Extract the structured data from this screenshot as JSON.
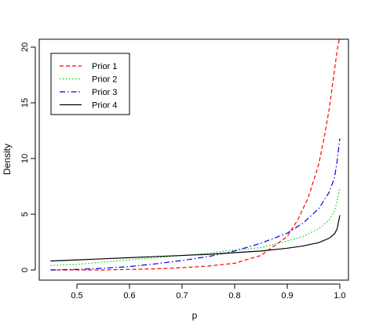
{
  "chart_data": {
    "type": "line",
    "title": "",
    "xlabel": "p",
    "ylabel": "Density",
    "xlim": [
      0.45,
      1.0
    ],
    "ylim": [
      0,
      21
    ],
    "x_ticks": [
      0.5,
      0.6,
      0.7,
      0.8,
      0.9,
      1.0
    ],
    "x_tick_labels": [
      "0.5",
      "0.6",
      "0.7",
      "0.8",
      "0.9",
      "1.0"
    ],
    "y_ticks": [
      0,
      5,
      10,
      15,
      20
    ],
    "y_tick_labels": [
      "0",
      "5",
      "10",
      "15",
      "20"
    ],
    "grid": false,
    "legend_position": "top-left",
    "series": [
      {
        "name": "Prior 1",
        "color": "#ff0000",
        "dash": "dashed",
        "x": [
          0.45,
          0.5,
          0.55,
          0.6,
          0.65,
          0.7,
          0.75,
          0.8,
          0.85,
          0.9,
          0.92,
          0.94,
          0.96,
          0.97,
          0.98,
          0.99,
          0.995,
          1.0
        ],
        "y": [
          0.0,
          0.0,
          0.0,
          0.05,
          0.1,
          0.2,
          0.35,
          0.6,
          1.3,
          3.0,
          4.5,
          6.5,
          9.5,
          11.8,
          14.5,
          18.0,
          19.7,
          21.0
        ]
      },
      {
        "name": "Prior 2",
        "color": "#00cc00",
        "dash": "dotted",
        "x": [
          0.45,
          0.5,
          0.55,
          0.6,
          0.65,
          0.7,
          0.75,
          0.8,
          0.85,
          0.9,
          0.93,
          0.96,
          0.98,
          0.99,
          0.995,
          1.0
        ],
        "y": [
          0.4,
          0.5,
          0.7,
          0.9,
          1.1,
          1.3,
          1.5,
          1.8,
          2.0,
          2.6,
          3.0,
          3.7,
          4.5,
          5.3,
          6.2,
          7.4
        ]
      },
      {
        "name": "Prior 3",
        "color": "#0000ee",
        "dash": "dashdot",
        "x": [
          0.45,
          0.5,
          0.55,
          0.6,
          0.65,
          0.7,
          0.75,
          0.8,
          0.85,
          0.9,
          0.93,
          0.96,
          0.98,
          0.99,
          0.995,
          1.0
        ],
        "y": [
          0.0,
          0.05,
          0.15,
          0.3,
          0.55,
          0.85,
          1.2,
          1.7,
          2.4,
          3.3,
          4.2,
          5.5,
          7.0,
          8.3,
          9.8,
          11.8
        ]
      },
      {
        "name": "Prior 4",
        "color": "#000000",
        "dash": "solid",
        "x": [
          0.45,
          0.5,
          0.55,
          0.6,
          0.65,
          0.7,
          0.75,
          0.8,
          0.85,
          0.9,
          0.93,
          0.96,
          0.98,
          0.99,
          0.995,
          1.0
        ],
        "y": [
          0.8,
          0.9,
          1.0,
          1.1,
          1.2,
          1.3,
          1.4,
          1.55,
          1.7,
          1.95,
          2.15,
          2.45,
          2.85,
          3.25,
          3.7,
          4.9
        ]
      }
    ]
  }
}
